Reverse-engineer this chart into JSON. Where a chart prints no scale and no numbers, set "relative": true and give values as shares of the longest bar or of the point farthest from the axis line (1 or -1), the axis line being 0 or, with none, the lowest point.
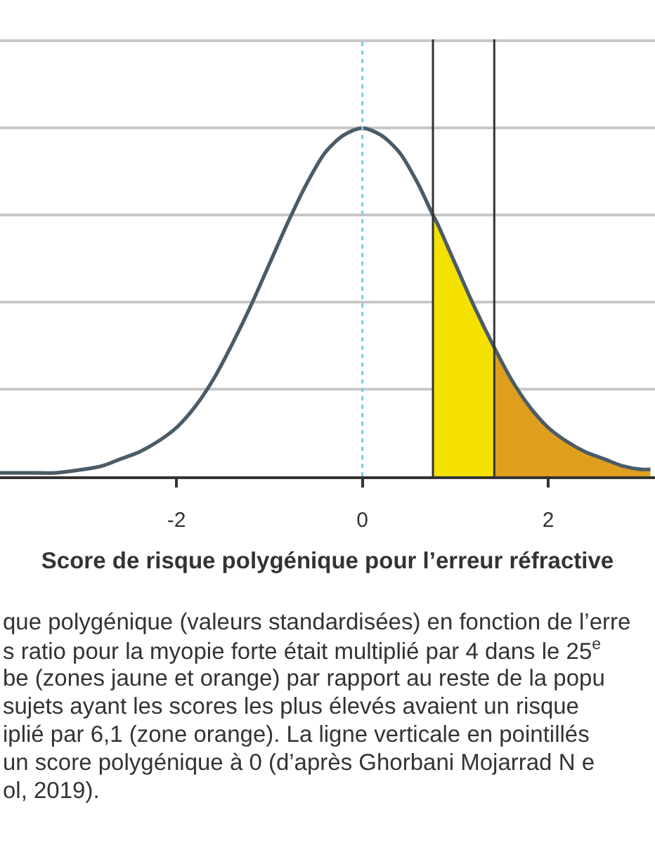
{
  "chart_data": {
    "type": "line",
    "xlabel": "Score de risque polygénique pour l’erreur réfractive",
    "relative": true,
    "xlim": [
      -3.9,
      3.15
    ],
    "xticks": [
      -2,
      0,
      2
    ],
    "grid": "y",
    "series": [
      {
        "type": "area",
        "color": "#f5e100",
        "x": [
          0.76,
          0.8,
          1.0,
          1.2,
          1.42
        ],
        "values": [
          0.75,
          0.73,
          0.61,
          0.49,
          0.37
        ]
      },
      {
        "type": "area",
        "color": "#df9f1e",
        "x": [
          1.42,
          1.6,
          1.8,
          2.0,
          2.2,
          2.4,
          2.6,
          2.8,
          3.0,
          3.1
        ],
        "values": [
          0.37,
          0.28,
          0.2,
          0.14,
          0.1,
          0.07,
          0.05,
          0.03,
          0.02,
          0.02
        ]
      },
      {
        "color": "#4b5c68",
        "x": [
          -3.9,
          -3.6,
          -3.3,
          -3.0,
          -2.8,
          -2.6,
          -2.4,
          -2.2,
          -2.0,
          -1.8,
          -1.6,
          -1.4,
          -1.2,
          -1.0,
          -0.8,
          -0.6,
          -0.4,
          -0.2,
          0,
          0.2,
          0.4,
          0.6,
          0.76,
          0.8,
          1.0,
          1.2,
          1.42,
          1.6,
          1.8,
          2.0,
          2.2,
          2.4,
          2.6,
          2.8,
          3.0,
          3.1
        ],
        "values": [
          0.01,
          0.01,
          0.01,
          0.02,
          0.03,
          0.05,
          0.07,
          0.1,
          0.14,
          0.2,
          0.28,
          0.38,
          0.49,
          0.61,
          0.73,
          0.84,
          0.93,
          0.98,
          1,
          0.98,
          0.93,
          0.84,
          0.75,
          0.73,
          0.61,
          0.49,
          0.37,
          0.28,
          0.2,
          0.14,
          0.1,
          0.07,
          0.05,
          0.03,
          0.02,
          0.02
        ]
      }
    ],
    "ref_lines": [
      {
        "axis": "x",
        "value": 0,
        "color": "#7fcbe8",
        "line_style": "dotted"
      },
      {
        "axis": "x",
        "value": 0.76,
        "color": "#333333",
        "line_style": "solid"
      },
      {
        "axis": "x",
        "value": 1.42,
        "color": "#333333",
        "line_style": "solid"
      }
    ],
    "annotations": [
      "que polygénique (valeurs standardisées) en fonction de l’erre\ns ratio pour la myopie forte était multiplié par 4 dans le 25$^{e}$\nbe (zones jaune et orange) par rapport au reste de la popu\nsujets ayant les scores les plus élevés avaient un risque\niplié par 6,1 (zone orange). La ligne verticale en pointillés\nun score polygénique à 0 (d’après Ghorbani Mojarrad N e\nol, 2019)."
    ]
  }
}
